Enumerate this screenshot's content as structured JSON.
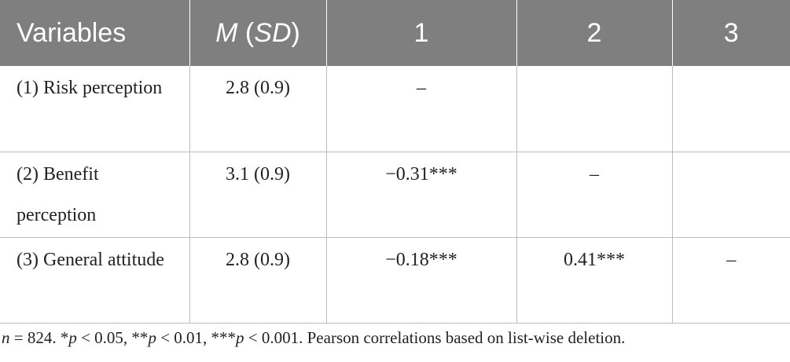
{
  "table": {
    "header": {
      "variables": "Variables",
      "m": "M",
      "sd_open": " (",
      "sd": "SD",
      "sd_close": ")",
      "col1": "1",
      "col2": "2",
      "col3": "3"
    },
    "rows": [
      {
        "variable": "(1) Risk perception",
        "msd": "2.8 (0.9)",
        "c1": "–",
        "c2": "",
        "c3": ""
      },
      {
        "variable": "(2) Benefit perception",
        "msd": "3.1 (0.9)",
        "c1": "−0.31***",
        "c2": "–",
        "c3": ""
      },
      {
        "variable": "(3) General attitude",
        "msd": "2.8 (0.9)",
        "c1": "−0.18***",
        "c2": "0.41***",
        "c3": "–"
      }
    ]
  },
  "note": {
    "n": "n",
    "t1": " = 824. *",
    "p1": "p",
    "t2": " < 0.05, **",
    "p2": "p",
    "t3": " < 0.01, ***",
    "p3": "p",
    "t4": " < 0.001. Pearson correlations based on list-wise deletion."
  }
}
